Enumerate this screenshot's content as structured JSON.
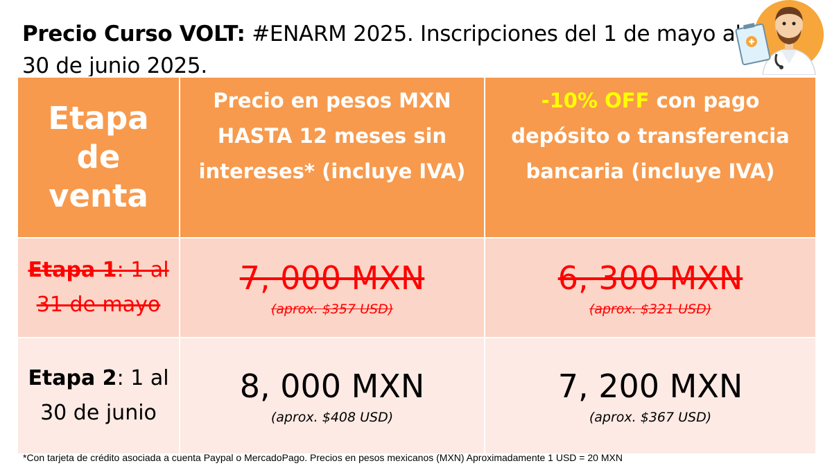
{
  "title": {
    "bold": "Precio Curso VOLT:",
    "rest": " #ENARM 2025. Inscripciones del 1 de mayo al 30 de junio 2025."
  },
  "table": {
    "headers": {
      "stage_line1": "Etapa",
      "stage_line2": "de",
      "stage_line3": "venta",
      "price_msi": "Precio en pesos MXN HASTA 12 meses sin intereses* (incluye IVA)",
      "discount_highlight": "-10% OFF",
      "discount_rest": " con pago depósito o transferencia bancaria (incluye IVA)"
    },
    "rows": [
      {
        "stage_bold": "Etapa 1",
        "stage_rest": ": 1 al 31 de mayo",
        "price_msi": "7, 000 MXN",
        "price_msi_usd": "(aprox. $357 USD)",
        "price_discount": "6, 300 MXN",
        "price_discount_usd": "(aprox. $321 USD)",
        "expired": true
      },
      {
        "stage_bold": "Etapa 2",
        "stage_rest": ": 1 al 30 de junio",
        "price_msi": "8, 000 MXN",
        "price_msi_usd": "(aprox. $408 USD)",
        "price_discount": "7, 200 MXN",
        "price_discount_usd": "(aprox. $367 USD)",
        "expired": false
      }
    ]
  },
  "footnote": "*Con tarjeta de crédito asociada a cuenta Paypal o MercadoPago. Precios en pesos mexicanos (MXN) Aproximadamente 1 USD = 20 MXN",
  "colors": {
    "header_bg": "#f79a4d",
    "row1_bg": "#fbd5c7",
    "row2_bg": "#fdeae4",
    "strike_red": "#ff0000",
    "discount_yellow": "#ffff00"
  },
  "icons": {
    "doctor": "doctor-with-clipboard-icon"
  }
}
